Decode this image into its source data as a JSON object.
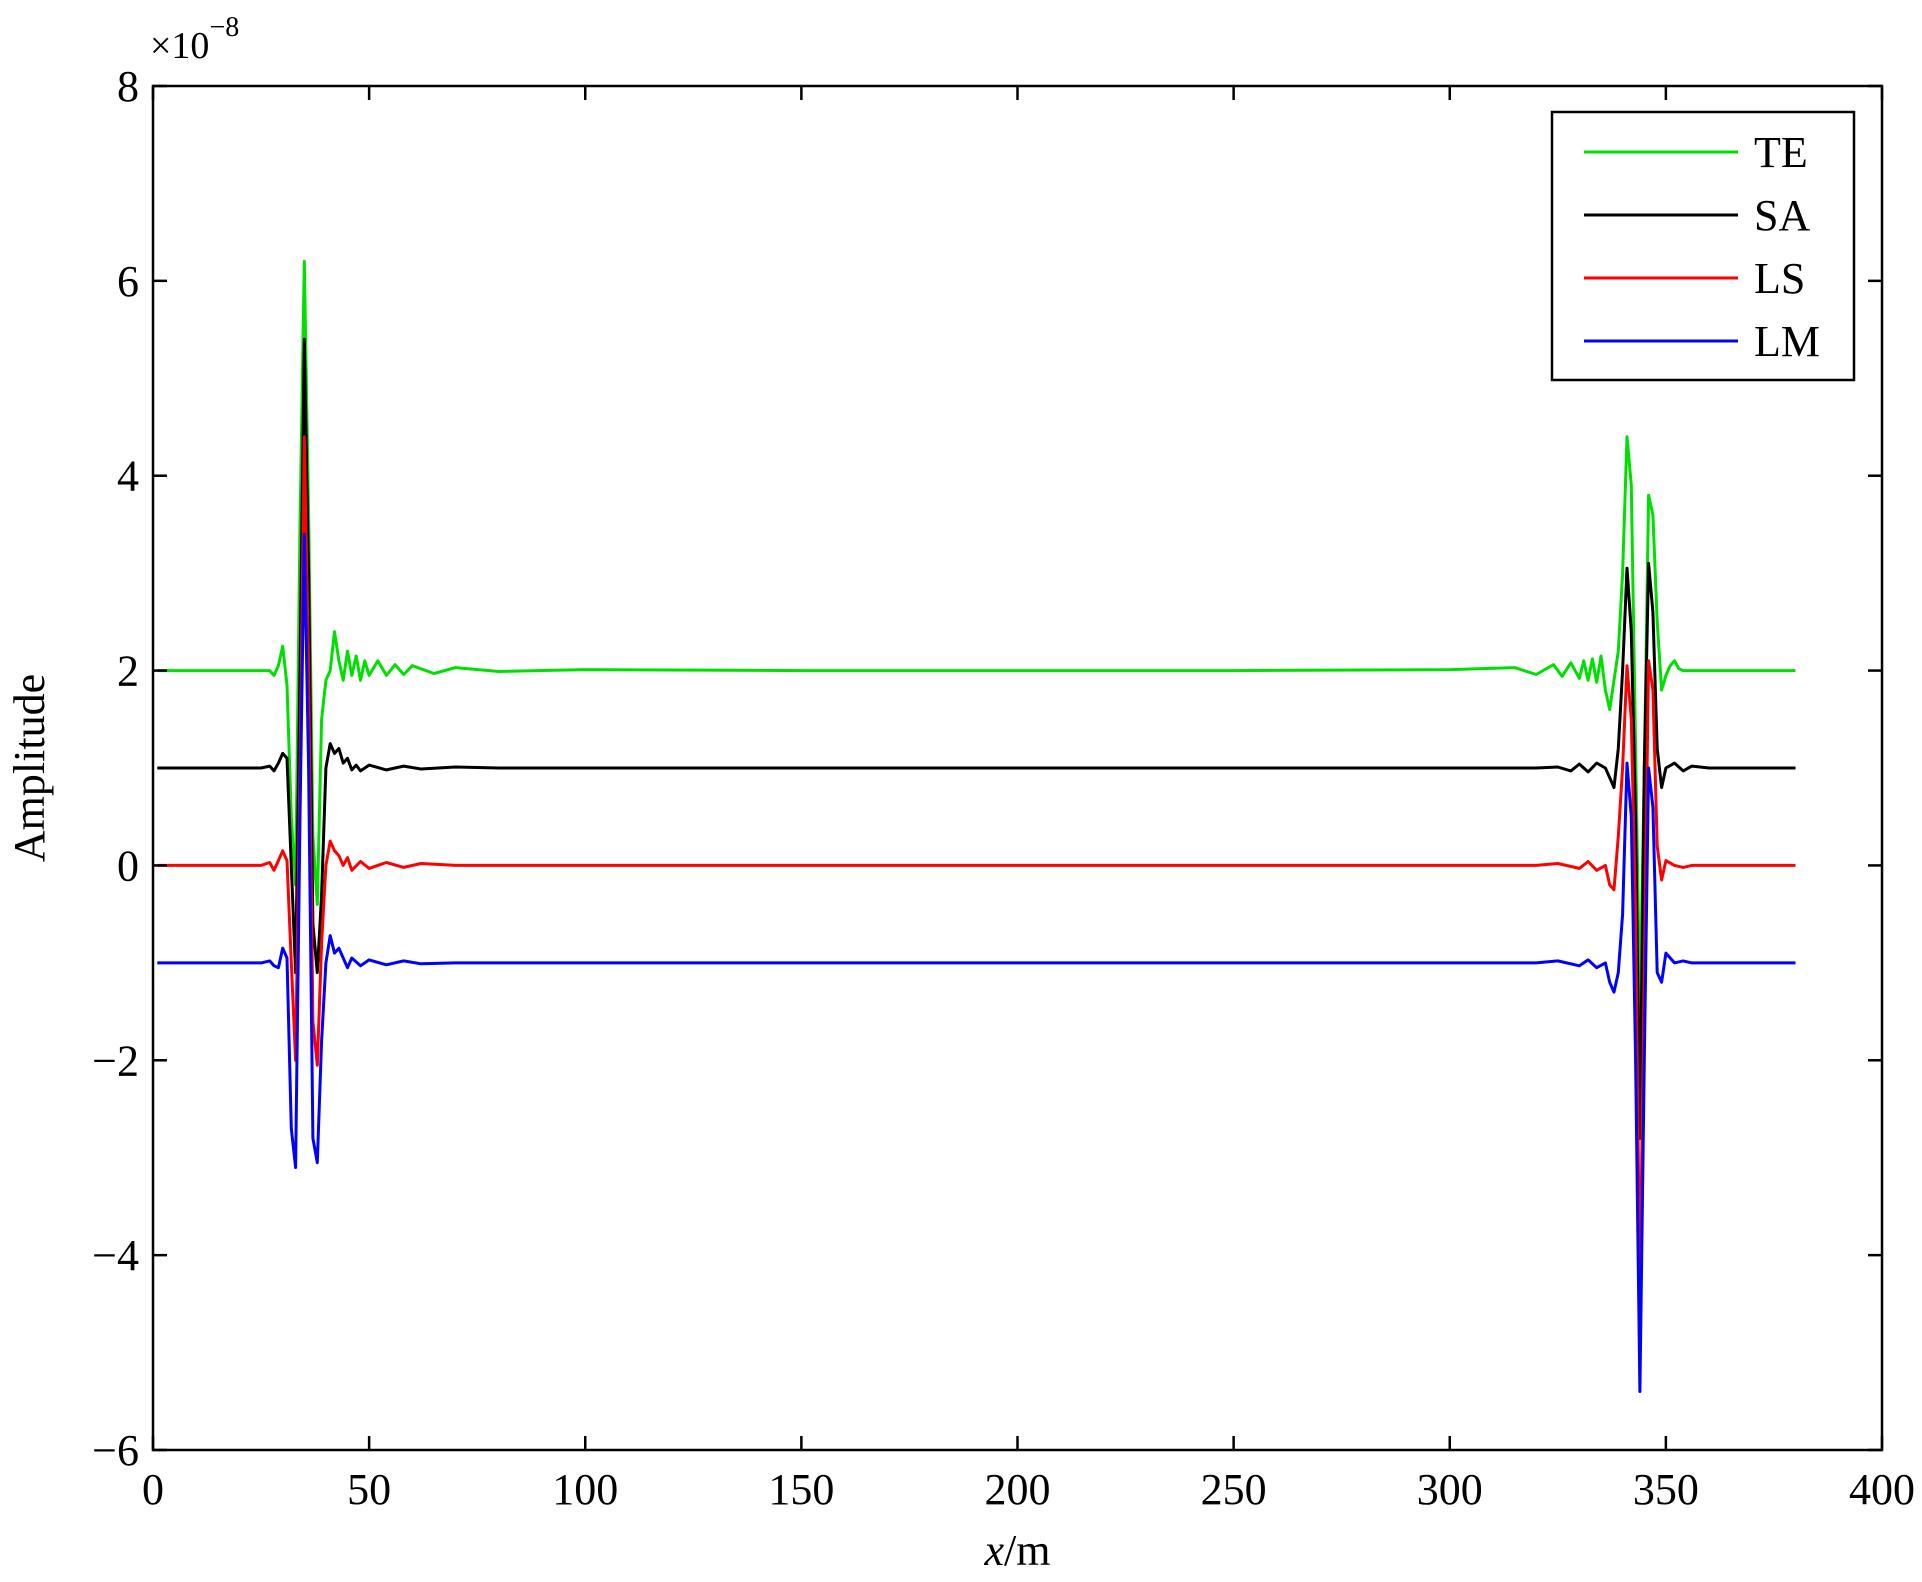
{
  "chart_data": {
    "type": "line",
    "xlabel_italic": "x",
    "xlabel_unit": "/m",
    "ylabel": "Amplitude",
    "exponent_base": "×10",
    "exponent_power": "−8",
    "xlim": [
      0,
      400
    ],
    "ylim": [
      -6,
      8
    ],
    "xticks": [
      0,
      50,
      100,
      150,
      200,
      250,
      300,
      350,
      400
    ],
    "xtick_labels": [
      "0",
      "50",
      "100",
      "150",
      "200",
      "250",
      "300",
      "350",
      "400"
    ],
    "yticks": [
      -6,
      -4,
      -2,
      0,
      2,
      4,
      6,
      8
    ],
    "ytick_labels": [
      "−6",
      "−4",
      "−2",
      "0",
      "2",
      "4",
      "6",
      "8"
    ],
    "grid": false,
    "legend_position": "top-right",
    "series": [
      {
        "name": "TE",
        "color": "#00e000",
        "baseline": 2,
        "x": [
          1,
          25,
          27,
          28,
          29,
          30,
          31,
          32,
          33,
          34,
          35,
          36,
          37,
          38,
          39,
          40,
          41,
          42,
          43,
          44,
          45,
          46,
          47,
          48,
          49,
          50,
          52,
          54,
          56,
          58,
          60,
          65,
          70,
          80,
          100,
          150,
          200,
          250,
          300,
          315,
          320,
          324,
          326,
          328,
          330,
          331,
          332,
          333,
          334,
          335,
          336,
          337,
          338,
          339,
          340,
          341,
          342,
          343,
          344,
          345,
          346,
          347,
          348,
          349,
          350,
          351,
          352,
          353,
          354,
          355,
          356,
          360,
          380
        ],
        "y": [
          2,
          2,
          2,
          1.95,
          2.05,
          2.25,
          1.85,
          0.5,
          -0.2,
          3.5,
          6.2,
          3.6,
          0.3,
          -0.4,
          1.5,
          1.9,
          2.0,
          2.4,
          2.1,
          1.9,
          2.2,
          1.95,
          2.15,
          1.9,
          2.1,
          1.95,
          2.1,
          1.95,
          2.06,
          1.96,
          2.05,
          1.97,
          2.03,
          1.99,
          2.01,
          2.0,
          2.0,
          2.0,
          2.01,
          2.03,
          1.96,
          2.06,
          1.94,
          2.08,
          1.92,
          2.1,
          1.9,
          2.12,
          1.88,
          2.15,
          1.8,
          1.6,
          1.9,
          2.2,
          3.0,
          4.4,
          3.9,
          1.2,
          -1.5,
          1.0,
          3.8,
          3.6,
          2.5,
          1.8,
          1.95,
          2.05,
          2.1,
          2.02,
          2.0,
          2.0,
          2.0,
          2.0,
          2.0
        ]
      },
      {
        "name": "SA",
        "color": "#000000",
        "baseline": 1,
        "x": [
          1,
          25,
          27,
          28,
          29,
          30,
          31,
          32,
          33,
          34,
          35,
          36,
          37,
          38,
          39,
          40,
          41,
          42,
          43,
          44,
          45,
          46,
          47,
          48,
          50,
          54,
          58,
          62,
          70,
          80,
          100,
          150,
          200,
          250,
          300,
          320,
          325,
          328,
          330,
          332,
          334,
          336,
          337,
          338,
          339,
          340,
          341,
          342,
          343,
          344,
          345,
          346,
          347,
          348,
          349,
          350,
          352,
          354,
          356,
          360,
          380
        ],
        "y": [
          1,
          1,
          1.02,
          0.97,
          1.05,
          1.15,
          1.1,
          0.0,
          -1.1,
          2.0,
          5.4,
          3.0,
          -0.6,
          -1.1,
          -0.3,
          1.0,
          1.25,
          1.15,
          1.2,
          1.05,
          1.1,
          0.98,
          1.03,
          0.97,
          1.03,
          0.98,
          1.02,
          0.99,
          1.01,
          1.0,
          1.0,
          1.0,
          1.0,
          1.0,
          1.0,
          1.0,
          1.01,
          0.97,
          1.04,
          0.96,
          1.05,
          1.0,
          0.9,
          0.8,
          1.2,
          2.0,
          3.05,
          2.4,
          0.5,
          -2.8,
          1.0,
          3.1,
          2.6,
          1.2,
          0.8,
          1.0,
          1.05,
          0.97,
          1.02,
          1.0,
          1.0
        ]
      },
      {
        "name": "LS",
        "color": "#ff0000",
        "baseline": 0,
        "x": [
          1,
          25,
          27,
          28,
          29,
          30,
          31,
          32,
          33,
          34,
          35,
          36,
          37,
          38,
          39,
          40,
          41,
          42,
          43,
          44,
          45,
          46,
          48,
          50,
          54,
          58,
          62,
          70,
          80,
          100,
          150,
          200,
          250,
          300,
          320,
          325,
          330,
          332,
          334,
          336,
          337,
          338,
          339,
          340,
          341,
          342,
          343,
          344,
          345,
          346,
          347,
          348,
          349,
          350,
          352,
          354,
          356,
          360,
          380
        ],
        "y": [
          0,
          0,
          0.03,
          -0.05,
          0.05,
          0.15,
          0.05,
          -1.0,
          -2.0,
          1.0,
          4.4,
          2.0,
          -1.6,
          -2.05,
          -0.8,
          0.0,
          0.25,
          0.15,
          0.1,
          0.0,
          0.08,
          -0.05,
          0.04,
          -0.03,
          0.03,
          -0.02,
          0.02,
          0.0,
          0.0,
          0.0,
          0.0,
          0.0,
          0.0,
          0.0,
          0.0,
          0.02,
          -0.03,
          0.04,
          -0.05,
          0.0,
          -0.2,
          -0.25,
          0.3,
          1.0,
          2.05,
          1.5,
          -0.5,
          -4.5,
          -1.0,
          2.1,
          1.8,
          0.2,
          -0.15,
          0.05,
          0.0,
          -0.02,
          0.0,
          0.0,
          0.0
        ]
      },
      {
        "name": "LM",
        "color": "#0000ff",
        "baseline": -1,
        "x": [
          1,
          25,
          27,
          28,
          29,
          30,
          31,
          32,
          33,
          34,
          35,
          36,
          37,
          38,
          39,
          40,
          41,
          42,
          43,
          44,
          45,
          46,
          48,
          50,
          54,
          58,
          62,
          70,
          80,
          100,
          150,
          200,
          250,
          300,
          320,
          325,
          330,
          332,
          334,
          336,
          337,
          338,
          339,
          340,
          341,
          342,
          343,
          344,
          345,
          346,
          347,
          348,
          349,
          350,
          352,
          354,
          356,
          360,
          380
        ],
        "y": [
          -1,
          -1,
          -0.98,
          -1.03,
          -1.05,
          -0.85,
          -0.95,
          -2.7,
          -3.1,
          0.5,
          3.4,
          1.0,
          -2.8,
          -3.05,
          -1.8,
          -1.0,
          -0.72,
          -0.9,
          -0.85,
          -0.95,
          -1.05,
          -0.95,
          -1.03,
          -0.97,
          -1.02,
          -0.98,
          -1.01,
          -1.0,
          -1.0,
          -1.0,
          -1.0,
          -1.0,
          -1.0,
          -1.0,
          -1.0,
          -0.98,
          -1.03,
          -0.97,
          -1.05,
          -1.0,
          -1.2,
          -1.3,
          -1.1,
          -0.5,
          1.05,
          0.5,
          -2.0,
          -5.4,
          -2.0,
          1.0,
          0.6,
          -1.1,
          -1.2,
          -0.9,
          -1.0,
          -0.98,
          -1.0,
          -1.0,
          -1.0
        ]
      }
    ]
  }
}
